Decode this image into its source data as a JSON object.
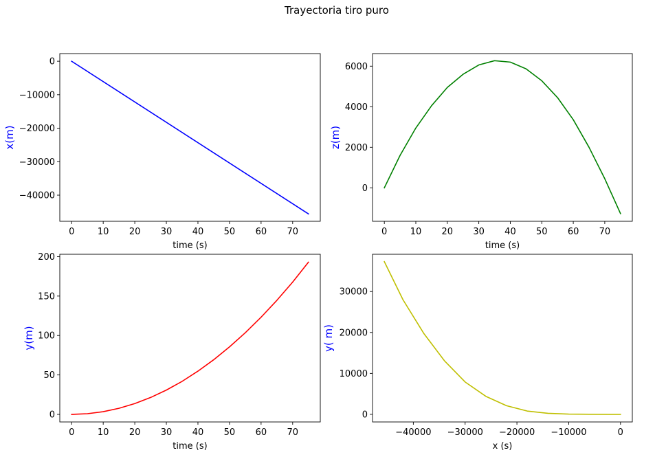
{
  "figure": {
    "suptitle": "Trayectoria tiro puro"
  },
  "chart_data": [
    {
      "type": "line",
      "xlabel": "time (s)",
      "ylabel": "x(m)",
      "ylabel_color": "#0000ff",
      "xlim": [
        -3.75,
        78.75
      ],
      "ylim": [
        -47800,
        2280
      ],
      "xticks": [
        0,
        10,
        20,
        30,
        40,
        50,
        60,
        70
      ],
      "yticks": [
        0,
        -10000,
        -20000,
        -30000,
        -40000
      ],
      "series": [
        {
          "color": "#0000ff",
          "x": [
            0,
            75
          ],
          "y": [
            0,
            -45600
          ]
        }
      ]
    },
    {
      "type": "line",
      "xlabel": "time (s)",
      "ylabel": "z(m)",
      "ylabel_color": "#0000ff",
      "xlim": [
        -3.75,
        78.75
      ],
      "ylim": [
        -1650,
        6620
      ],
      "xticks": [
        0,
        10,
        20,
        30,
        40,
        50,
        60,
        70
      ],
      "yticks": [
        0,
        2000,
        4000,
        6000
      ],
      "series": [
        {
          "color": "#008000",
          "x": [
            0,
            5,
            10,
            15,
            20,
            25,
            30,
            35,
            40,
            45,
            50,
            55,
            60,
            65,
            70,
            75
          ],
          "y": [
            0,
            1600,
            2950,
            4050,
            4950,
            5600,
            6060,
            6270,
            6200,
            5870,
            5280,
            4450,
            3360,
            2000,
            450,
            -1270
          ]
        }
      ]
    },
    {
      "type": "line",
      "xlabel": "time (s)",
      "ylabel": "y(m)",
      "ylabel_color": "#0000ff",
      "xlim": [
        -3.75,
        78.75
      ],
      "ylim": [
        -9.6,
        203
      ],
      "xticks": [
        0,
        10,
        20,
        30,
        40,
        50,
        60,
        70
      ],
      "yticks": [
        0,
        50,
        100,
        150,
        200
      ],
      "series": [
        {
          "color": "#ff0000",
          "x": [
            0,
            5,
            10,
            15,
            20,
            25,
            30,
            35,
            40,
            45,
            50,
            55,
            60,
            65,
            70,
            75
          ],
          "y": [
            0,
            0.86,
            3.4,
            7.7,
            13.7,
            21.4,
            30.8,
            41.9,
            54.8,
            69.3,
            85.6,
            103.5,
            123.2,
            144.6,
            167.7,
            193
          ]
        }
      ]
    },
    {
      "type": "line",
      "xlabel": "x (s)",
      "ylabel": "y( m)",
      "ylabel_color": "#0000ff",
      "xlim": [
        -47880,
        2280
      ],
      "ylim": [
        -1860,
        39100
      ],
      "xticks": [
        -40000,
        -30000,
        -20000,
        -10000,
        0
      ],
      "yticks": [
        0,
        10000,
        20000,
        30000
      ],
      "series": [
        {
          "color": "#bfbf00",
          "x": [
            -45600,
            -42000,
            -38000,
            -34000,
            -30000,
            -26000,
            -22000,
            -18000,
            -14000,
            -10000,
            -6000,
            -2000,
            0
          ],
          "y": [
            37300,
            28000,
            19800,
            13100,
            7900,
            4400,
            2100,
            800,
            250,
            60,
            10,
            0,
            0
          ]
        }
      ]
    }
  ]
}
